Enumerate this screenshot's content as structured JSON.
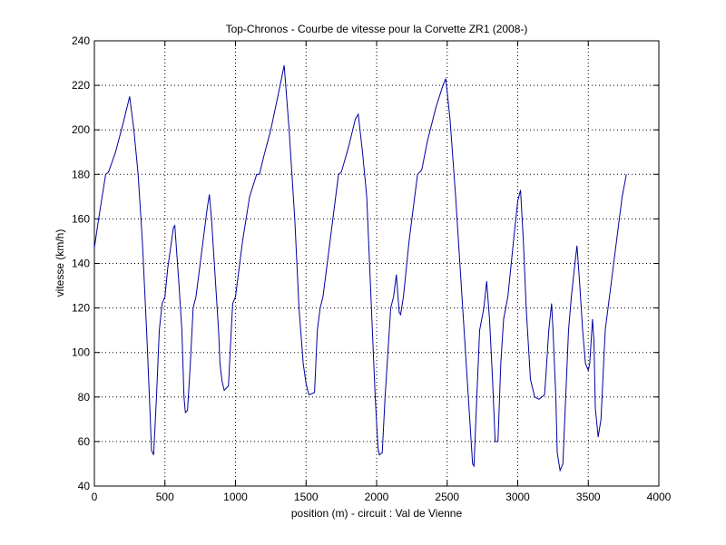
{
  "chart_data": {
    "type": "line",
    "title": "Top-Chronos - Courbe de vitesse pour la Corvette ZR1 (2008-)",
    "xlabel": "position (m) - circuit : Val de Vienne",
    "ylabel": "vitesse (km/h)",
    "xlim": [
      0,
      4000
    ],
    "xticks": [
      0,
      500,
      1000,
      1500,
      2000,
      2500,
      3000,
      3500,
      4000
    ],
    "ylim": [
      40,
      240
    ],
    "yticks": [
      40,
      60,
      80,
      100,
      120,
      140,
      160,
      180,
      200,
      220,
      240
    ],
    "grid": true,
    "series": [
      {
        "color": "#0000a0",
        "x": [
          0,
          30,
          60,
          80,
          100,
          150,
          200,
          250,
          280,
          310,
          340,
          370,
          390,
          405,
          420,
          440,
          460,
          480,
          500,
          520,
          560,
          570,
          600,
          620,
          635,
          645,
          660,
          680,
          700,
          720,
          760,
          800,
          815,
          830,
          860,
          880,
          890,
          905,
          920,
          950,
          970,
          980,
          1000,
          1050,
          1100,
          1150,
          1170,
          1200,
          1250,
          1300,
          1345,
          1380,
          1420,
          1450,
          1480,
          1500,
          1520,
          1560,
          1580,
          1600,
          1620,
          1650,
          1700,
          1730,
          1750,
          1800,
          1850,
          1870,
          1900,
          1930,
          1950,
          1970,
          1990,
          2010,
          2020,
          2040,
          2060,
          2080,
          2100,
          2120,
          2140,
          2160,
          2170,
          2190,
          2230,
          2260,
          2290,
          2320,
          2360,
          2420,
          2470,
          2490,
          2520,
          2560,
          2590,
          2620,
          2640,
          2660,
          2680,
          2690,
          2710,
          2730,
          2760,
          2780,
          2800,
          2820,
          2840,
          2860,
          2880,
          2900,
          2930,
          2970,
          3000,
          3020,
          3040,
          3060,
          3090,
          3120,
          3150,
          3190,
          3200,
          3220,
          3240,
          3250,
          3270,
          3280,
          3300,
          3320,
          3340,
          3360,
          3380,
          3400,
          3420,
          3440,
          3460,
          3480,
          3500,
          3510,
          3530,
          3540,
          3550,
          3570,
          3590,
          3620,
          3650,
          3700,
          3740,
          3770
        ],
        "values": [
          147,
          160,
          172,
          180,
          181,
          190,
          202,
          215,
          200,
          180,
          150,
          110,
          80,
          56,
          54,
          80,
          110,
          122,
          125,
          138,
          156,
          157,
          130,
          110,
          80,
          73,
          74,
          95,
          120,
          125,
          145,
          165,
          171,
          160,
          130,
          110,
          95,
          87,
          83,
          85,
          110,
          122,
          125,
          150,
          170,
          180,
          180,
          188,
          200,
          215,
          229,
          200,
          160,
          120,
          95,
          86,
          81,
          82,
          110,
          120,
          125,
          140,
          165,
          180,
          181,
          192,
          205,
          207,
          190,
          170,
          140,
          110,
          80,
          57,
          54,
          55,
          80,
          100,
          120,
          125,
          135,
          118,
          117,
          125,
          150,
          165,
          180,
          182,
          195,
          210,
          220,
          223,
          205,
          170,
          140,
          110,
          90,
          70,
          50,
          49,
          80,
          110,
          120,
          132,
          115,
          90,
          60,
          60,
          95,
          115,
          125,
          150,
          168,
          173,
          150,
          120,
          88,
          80,
          79,
          81,
          90,
          110,
          122,
          110,
          80,
          55,
          47,
          50,
          80,
          110,
          125,
          137,
          148,
          130,
          110,
          95,
          92,
          95,
          115,
          105,
          75,
          62,
          70,
          110,
          125,
          150,
          170,
          180
        ]
      }
    ]
  }
}
